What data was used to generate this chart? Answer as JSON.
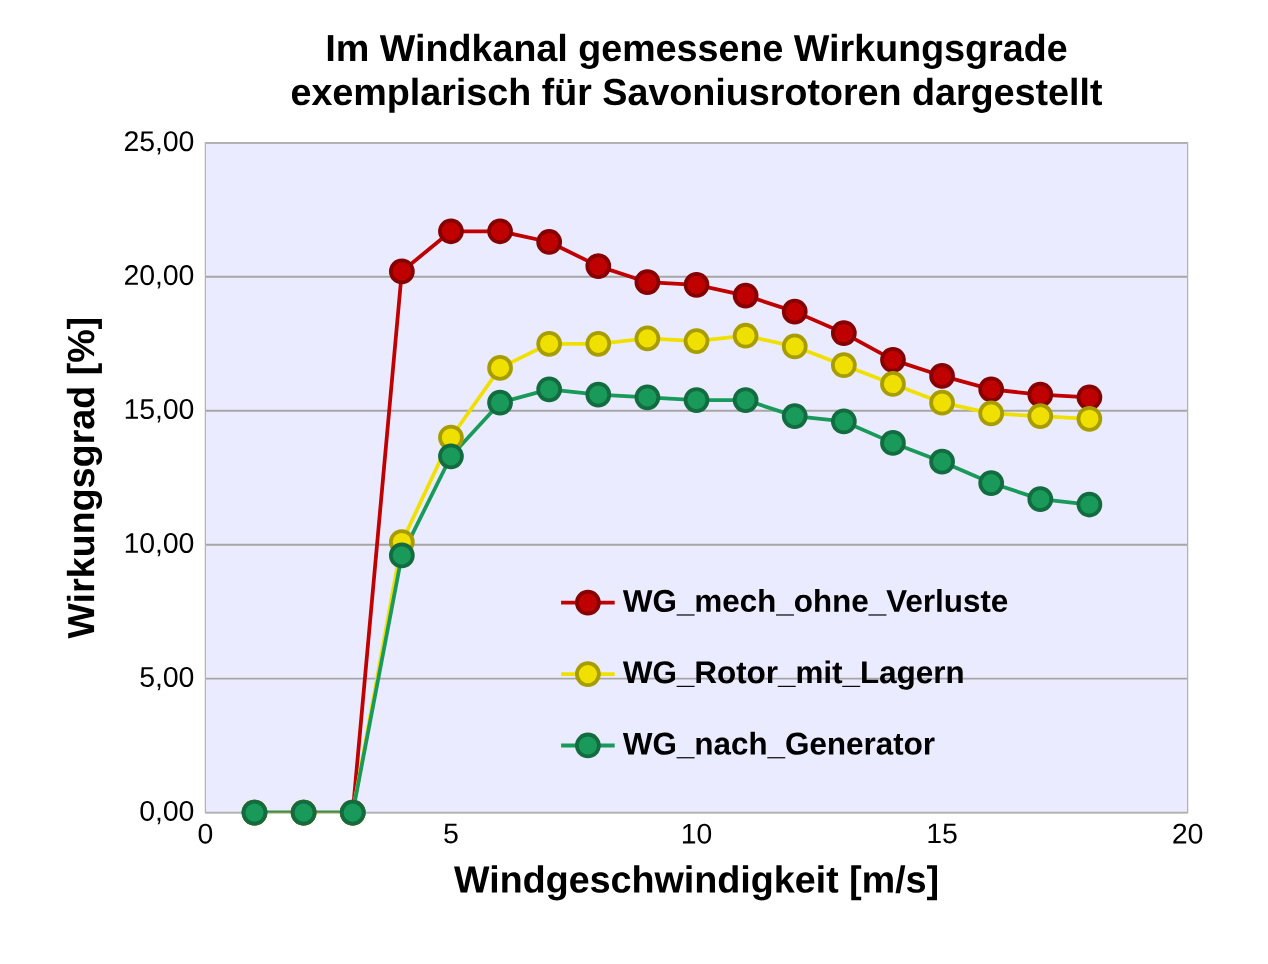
{
  "chart_data": {
    "type": "line",
    "title": "Im Windkanal gemessene Wirkungsgrade",
    "subtitle": "exemplarisch für Savoniusrotoren dargestellt",
    "xlabel": "Windgeschwindigkeit [m/s]",
    "ylabel": "Wirkungsgrad  [%]",
    "x": [
      1,
      2,
      3,
      4,
      5,
      6,
      7,
      8,
      9,
      10,
      11,
      12,
      13,
      14,
      15,
      16,
      17,
      18
    ],
    "series": [
      {
        "name": "WG_mech_ohne_Verluste",
        "color": "#c00000",
        "values": [
          0,
          0,
          0,
          20.2,
          21.7,
          21.7,
          21.3,
          20.4,
          19.8,
          19.7,
          19.3,
          18.7,
          17.9,
          16.9,
          16.3,
          15.8,
          15.6,
          15.5
        ]
      },
      {
        "name": "WG_Rotor_mit_Lagern",
        "color": "#f0e000",
        "values": [
          0,
          0,
          0,
          10.1,
          14.0,
          16.6,
          17.5,
          17.5,
          17.7,
          17.6,
          17.8,
          17.4,
          16.7,
          16.0,
          15.3,
          14.9,
          14.8,
          14.7
        ]
      },
      {
        "name": "WG_nach_Generator",
        "color": "#1a9a5a",
        "values": [
          0,
          0,
          0,
          9.6,
          13.3,
          15.3,
          15.8,
          15.6,
          15.5,
          15.4,
          15.4,
          14.8,
          14.6,
          13.8,
          13.1,
          12.3,
          11.7,
          11.5
        ]
      }
    ],
    "xlim": [
      0,
      20
    ],
    "ylim": [
      0,
      25
    ],
    "xticks": [
      0,
      5,
      10,
      15,
      20
    ],
    "yticks": [
      {
        "value": 0,
        "label": "0,00"
      },
      {
        "value": 5,
        "label": "5,00"
      },
      {
        "value": 10,
        "label": "10,00"
      },
      {
        "value": 15,
        "label": "15,00"
      },
      {
        "value": 20,
        "label": "20,00"
      },
      {
        "value": 25,
        "label": "25,00"
      }
    ],
    "grid": "y",
    "legend": "bottom",
    "marker": "circle",
    "line_style": "solid"
  }
}
